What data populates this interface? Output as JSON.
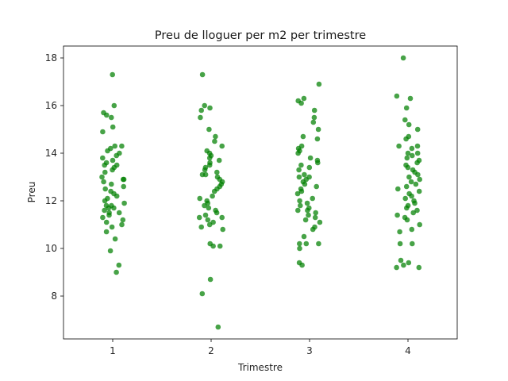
{
  "chart_data": {
    "type": "scatter",
    "title": "Preu de lloguer per m2 per trimestre",
    "xlabel": "Trimestre",
    "ylabel": "Preu",
    "categories": [
      "1",
      "2",
      "3",
      "4"
    ],
    "ylim": [
      6.2,
      18.5
    ],
    "yticks": [
      8,
      10,
      12,
      14,
      16,
      18
    ],
    "grid": false,
    "point_color": "#008000",
    "series": [
      {
        "category": "1",
        "values": [
          17.3,
          16.0,
          15.7,
          15.6,
          15.5,
          15.1,
          14.9,
          14.3,
          14.3,
          14.2,
          14.1,
          14.0,
          13.9,
          13.8,
          13.7,
          13.6,
          13.5,
          13.5,
          13.4,
          13.3,
          13.2,
          13.0,
          12.9,
          12.9,
          12.8,
          12.7,
          12.6,
          12.5,
          12.4,
          12.3,
          12.2,
          12.1,
          12.0,
          11.9,
          11.8,
          11.8,
          11.7,
          11.7,
          11.6,
          11.5,
          11.5,
          11.4,
          11.3,
          11.2,
          11.1,
          11.0,
          10.9,
          10.7,
          10.4,
          9.9,
          9.3,
          9.0
        ]
      },
      {
        "category": "2",
        "values": [
          17.3,
          16.0,
          15.9,
          15.8,
          15.5,
          15.0,
          14.7,
          14.5,
          14.3,
          14.1,
          14.0,
          13.9,
          13.8,
          13.7,
          13.6,
          13.5,
          13.4,
          13.3,
          13.2,
          13.1,
          13.1,
          13.0,
          12.9,
          12.8,
          12.7,
          12.6,
          12.5,
          12.4,
          12.2,
          12.1,
          12.0,
          11.9,
          11.8,
          11.7,
          11.6,
          11.5,
          11.4,
          11.3,
          11.3,
          11.2,
          11.1,
          11.0,
          10.9,
          10.8,
          10.2,
          10.1,
          10.1,
          8.7,
          8.1,
          6.7
        ]
      },
      {
        "category": "3",
        "values": [
          16.9,
          16.3,
          16.2,
          16.1,
          15.8,
          15.5,
          15.3,
          15.0,
          14.7,
          14.6,
          14.3,
          14.2,
          14.1,
          14.0,
          13.8,
          13.7,
          13.6,
          13.5,
          13.4,
          13.3,
          13.1,
          13.0,
          13.0,
          12.9,
          12.8,
          12.7,
          12.6,
          12.5,
          12.4,
          12.3,
          12.1,
          12.0,
          11.9,
          11.8,
          11.7,
          11.6,
          11.6,
          11.5,
          11.4,
          11.3,
          11.2,
          11.1,
          10.9,
          10.8,
          10.5,
          10.2,
          10.2,
          10.2,
          10.0,
          9.4,
          9.3
        ]
      },
      {
        "category": "4",
        "values": [
          18.0,
          16.4,
          16.3,
          15.9,
          15.4,
          15.2,
          15.0,
          14.7,
          14.6,
          14.3,
          14.3,
          14.2,
          14.0,
          14.0,
          13.9,
          13.8,
          13.7,
          13.6,
          13.5,
          13.4,
          13.3,
          13.2,
          13.1,
          13.0,
          12.9,
          12.8,
          12.7,
          12.6,
          12.5,
          12.4,
          12.3,
          12.2,
          12.1,
          12.0,
          11.9,
          11.8,
          11.7,
          11.6,
          11.5,
          11.4,
          11.3,
          11.2,
          11.0,
          10.8,
          10.7,
          10.2,
          10.2,
          9.5,
          9.4,
          9.3,
          9.2,
          9.2
        ]
      }
    ]
  }
}
